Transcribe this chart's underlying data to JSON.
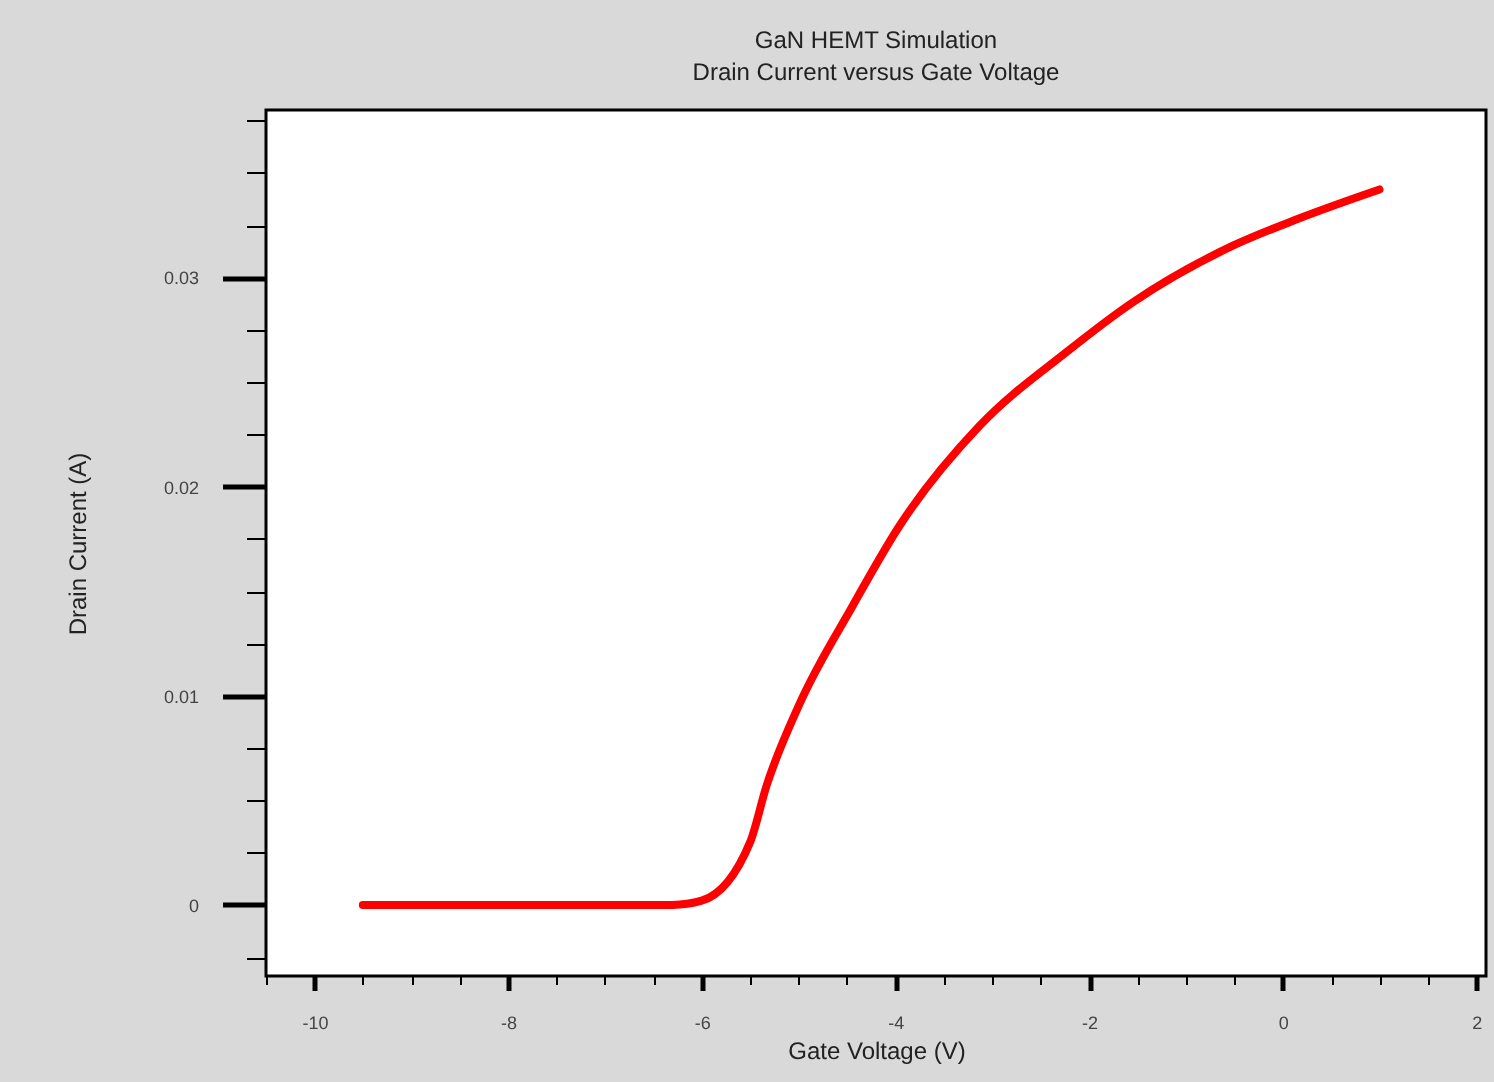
{
  "chart_data": {
    "type": "line",
    "title": "GaN HEMT Simulation",
    "subtitle": "Drain Current versus Gate Voltage",
    "xlabel": "Gate Voltage (V)",
    "ylabel": "Drain Current (A)",
    "series": [
      {
        "color": "#ff0000",
        "x": [
          -9.5,
          -6.9,
          -6.3,
          -6.0,
          -5.5,
          -5.33,
          -5.0,
          -4.44,
          -3.96,
          -3.13,
          -2.24,
          -1.55,
          -0.52,
          0.16,
          1.0
        ],
        "values": [
          0,
          0,
          0,
          0.0002,
          0.003,
          0.0057,
          0.0095,
          0.0143,
          0.0181,
          0.0229,
          0.0264,
          0.0288,
          0.0315,
          0.0328,
          0.0342
        ]
      }
    ],
    "xlim": [
      -10.5,
      2.1
    ],
    "ylim": [
      -0.0034,
      0.038
    ],
    "xticks": [
      {
        "value": -10.5,
        "label": null
      },
      -10,
      {
        "value": -9.5,
        "label": null
      },
      {
        "value": -9,
        "label": null
      },
      {
        "value": -8.5,
        "label": null
      },
      -8,
      {
        "value": -7.5,
        "label": null
      },
      {
        "value": -7,
        "label": null
      },
      {
        "value": -6.5,
        "label": null
      },
      -6,
      {
        "value": -5.5,
        "label": null
      },
      {
        "value": -5,
        "label": null
      },
      {
        "value": -4.5,
        "label": null
      },
      -4,
      {
        "value": -3.5,
        "label": null
      },
      {
        "value": -3,
        "label": null
      },
      {
        "value": -2.5,
        "label": null
      },
      -2,
      {
        "value": -1.5,
        "label": null
      },
      {
        "value": -1,
        "label": null
      },
      {
        "value": -0.5,
        "label": null
      },
      0,
      {
        "value": 0.5,
        "label": null
      },
      {
        "value": 1,
        "label": null
      },
      {
        "value": 1.5,
        "label": null
      },
      2
    ],
    "yticks": [
      {
        "value": -0.0025,
        "label": null
      },
      0,
      {
        "value": 0.0025,
        "label": null
      },
      {
        "value": 0.005,
        "label": null
      },
      {
        "value": 0.0075,
        "label": null
      },
      0.01,
      {
        "value": 0.0125,
        "label": null
      },
      {
        "value": 0.015,
        "label": null
      },
      {
        "value": 0.0175,
        "label": null
      },
      0.02,
      {
        "value": 0.0225,
        "label": null
      },
      {
        "value": 0.025,
        "label": null
      },
      {
        "value": 0.0275,
        "label": null
      },
      0.03,
      {
        "value": 0.0325,
        "label": null
      },
      {
        "value": 0.035,
        "label": null
      },
      {
        "value": 0.0375,
        "label": null
      }
    ],
    "grid": false,
    "marker": "none",
    "line_style": "solid"
  }
}
